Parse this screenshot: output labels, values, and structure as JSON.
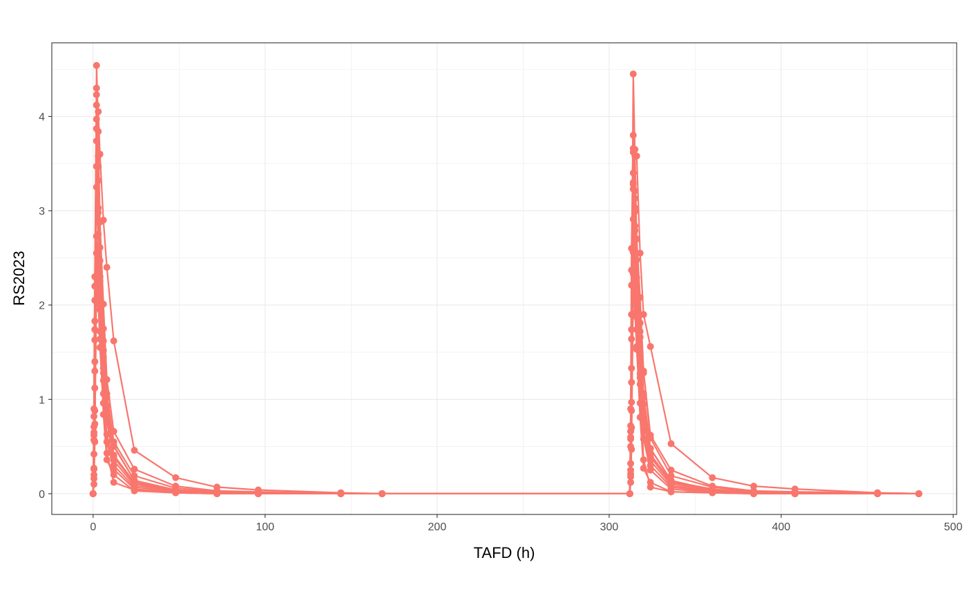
{
  "chart_data": {
    "type": "line",
    "markers": true,
    "title": "",
    "xlabel": "TAFD (h)",
    "ylabel": "RS2023",
    "xlim": [
      -24,
      502
    ],
    "ylim": [
      -0.22,
      4.78
    ],
    "xticks": [
      0,
      100,
      200,
      300,
      400,
      500
    ],
    "xtick_labels": [
      "0",
      "100",
      "200",
      "300",
      "400",
      "500"
    ],
    "yticks": [
      0,
      1,
      2,
      3,
      4
    ],
    "ytick_labels": [
      "0",
      "1",
      "2",
      "3",
      "4"
    ],
    "grid": true,
    "legend": "none",
    "color": "#F8766D",
    "panel_border": "#333333",
    "grid_color": "#ebebeb",
    "series": [
      {
        "x": [
          0,
          0.5,
          1,
          2,
          3,
          4,
          6,
          8,
          12,
          24,
          48,
          72,
          96,
          144,
          168,
          312,
          312.5,
          313,
          314,
          315,
          316,
          318,
          320,
          324,
          336,
          360,
          384,
          408,
          456,
          480
        ],
        "y": [
          0,
          0.42,
          1.83,
          4.54,
          3.84,
          2.88,
          2.01,
          1.21,
          0.66,
          0.26,
          0.08,
          0.03,
          0.02,
          0,
          0,
          0,
          0.5,
          1.9,
          4.45,
          3.58,
          2.7,
          2.08,
          1.3,
          0.62,
          0.25,
          0.08,
          0.03,
          0.02,
          0.01,
          0
        ]
      },
      {
        "x": [
          0,
          0.5,
          1,
          2,
          3,
          4,
          6,
          8,
          12,
          24,
          48,
          72,
          96,
          144,
          168,
          312,
          312.5,
          313,
          314,
          315,
          316,
          318,
          320,
          324,
          336,
          360,
          384,
          408,
          456,
          480
        ],
        "y": [
          0,
          0.82,
          2.3,
          4.3,
          4.05,
          3.6,
          2.9,
          2.4,
          1.62,
          0.46,
          0.17,
          0.07,
          0.04,
          0.01,
          0,
          0,
          0.9,
          2.6,
          3.8,
          3.65,
          3.58,
          2.55,
          1.9,
          1.56,
          0.53,
          0.17,
          0.08,
          0.05,
          0.01,
          0
        ]
      },
      {
        "x": [
          0,
          0.5,
          1,
          2,
          3,
          4,
          6,
          8,
          12,
          24,
          48,
          72,
          96,
          144,
          168,
          312,
          312.5,
          313,
          314,
          315,
          316,
          318,
          320,
          324,
          336,
          360,
          384,
          408,
          456,
          480
        ],
        "y": [
          0,
          0.9,
          2.05,
          3.97,
          3.47,
          2.61,
          1.75,
          1.06,
          0.55,
          0.19,
          0.06,
          0.02,
          0.01,
          0,
          0,
          0,
          0.66,
          2.21,
          3.3,
          3.03,
          2.7,
          1.81,
          1.28,
          0.59,
          0.19,
          0.07,
          0.02,
          0.01,
          0,
          0
        ]
      },
      {
        "x": [
          0,
          0.5,
          1,
          2,
          3,
          4,
          6,
          8,
          12,
          24,
          48,
          72,
          96,
          144,
          168,
          312,
          312.5,
          313,
          314,
          315,
          316,
          318,
          320,
          324,
          336,
          360,
          384,
          408,
          456,
          480
        ],
        "y": [
          0,
          0.65,
          1.74,
          3.87,
          3.03,
          2.26,
          1.52,
          0.93,
          0.5,
          0.14,
          0.04,
          0.01,
          0,
          0,
          0,
          0,
          0.72,
          1.64,
          3.4,
          2.99,
          2.29,
          1.66,
          1.02,
          0.48,
          0.13,
          0.05,
          0.01,
          0,
          0,
          0
        ]
      },
      {
        "x": [
          0,
          0.5,
          1,
          2,
          3,
          4,
          6,
          8,
          12,
          24,
          48,
          72,
          96,
          144,
          168,
          312,
          312.5,
          313,
          314,
          315,
          316,
          318,
          320,
          324,
          336,
          360,
          384,
          408,
          456,
          480
        ],
        "y": [
          0,
          0.57,
          1.4,
          3.74,
          2.88,
          2.47,
          1.33,
          0.85,
          0.39,
          0.11,
          0.03,
          0.01,
          0,
          0,
          0,
          0,
          0.58,
          1.33,
          3.23,
          2.84,
          2.16,
          1.5,
          0.83,
          0.39,
          0.11,
          0.03,
          0.01,
          0,
          0,
          0
        ]
      },
      {
        "x": [
          0,
          0.5,
          1,
          2,
          3,
          4,
          6,
          8,
          12,
          24,
          48,
          72,
          96,
          144,
          168,
          312,
          312.5,
          313,
          314,
          315,
          316,
          318,
          320,
          324,
          336,
          360,
          384,
          408,
          456,
          480
        ],
        "y": [
          0,
          0.27,
          1.12,
          3.25,
          2.75,
          1.95,
          1.28,
          0.77,
          0.35,
          0.09,
          0.03,
          0.01,
          0,
          0,
          0,
          0,
          0.32,
          0.97,
          2.91,
          2.41,
          1.87,
          1.27,
          0.79,
          0.35,
          0.09,
          0.02,
          0.01,
          0,
          0,
          0
        ]
      },
      {
        "x": [
          0,
          0.5,
          1,
          2,
          3,
          4,
          6,
          8,
          12,
          24,
          48,
          72,
          96,
          144,
          168,
          312,
          312.5,
          313,
          314,
          315,
          316,
          318,
          320,
          324,
          336,
          360,
          384,
          408,
          456,
          480
        ],
        "y": [
          0,
          0.2,
          0.88,
          2.73,
          2.39,
          1.72,
          1.06,
          0.63,
          0.3,
          0.07,
          0.02,
          0,
          0,
          0,
          0,
          0,
          0.25,
          0.88,
          2.56,
          2.16,
          1.74,
          1.16,
          0.67,
          0.3,
          0.07,
          0.02,
          0,
          0,
          0,
          0
        ]
      },
      {
        "x": [
          0,
          0.5,
          1,
          2,
          3,
          4,
          6,
          8,
          12,
          24,
          48,
          72,
          96,
          144,
          168,
          312,
          312.5,
          313,
          314,
          315,
          316,
          318,
          320,
          324,
          336,
          360,
          384,
          408,
          456,
          480
        ],
        "y": [
          0,
          0.16,
          0.74,
          2.55,
          2.12,
          1.55,
          0.96,
          0.55,
          0.26,
          0.05,
          0.01,
          0,
          0,
          0,
          0,
          0,
          0.18,
          0.7,
          2.33,
          2.02,
          1.53,
          0.96,
          0.58,
          0.25,
          0.05,
          0.01,
          0,
          0,
          0,
          0
        ]
      },
      {
        "x": [
          0,
          0.5,
          1,
          2,
          3,
          4,
          6,
          8,
          12,
          24,
          48,
          72,
          96,
          144,
          168,
          312,
          312.5,
          313,
          314,
          315,
          316,
          318,
          320,
          324,
          336,
          360,
          384,
          408,
          456,
          480
        ],
        "y": [
          0,
          0.26,
          1.63,
          4.23,
          3.32,
          2.3,
          1.45,
          0.87,
          0.41,
          0.12,
          0.04,
          0.01,
          0,
          0,
          0,
          0,
          0.21,
          1.74,
          3.66,
          3.13,
          2.17,
          1.47,
          0.95,
          0.42,
          0.12,
          0.04,
          0.01,
          0,
          0,
          0
        ]
      },
      {
        "x": [
          0,
          0.5,
          1,
          2,
          3,
          4,
          6,
          8,
          12,
          24,
          48,
          72,
          96,
          144,
          168,
          312,
          312.5,
          313,
          314,
          315,
          316,
          318,
          320,
          324,
          336,
          360,
          384,
          408,
          456,
          480
        ],
        "y": [
          0,
          0.71,
          2.2,
          4.12,
          3.58,
          2.18,
          1.62,
          1.02,
          0.51,
          0.14,
          0.04,
          0.01,
          0,
          0,
          0,
          0,
          0.6,
          2.37,
          3.62,
          3.21,
          2.48,
          1.72,
          1.06,
          0.48,
          0.14,
          0.04,
          0.01,
          0,
          0,
          0
        ]
      },
      {
        "x": [
          0,
          0.5,
          1,
          2,
          3,
          4,
          6,
          8,
          12,
          24,
          48,
          72,
          96,
          144,
          168,
          312,
          312.5,
          313,
          314,
          315,
          316,
          318,
          320,
          324,
          336,
          360,
          384,
          408,
          456,
          480
        ],
        "y": [
          0,
          0.62,
          1.3,
          3.47,
          2.98,
          2.02,
          1.2,
          0.43,
          0.12,
          0.04,
          0.01,
          0,
          0,
          0,
          0,
          0,
          0.66,
          1.18,
          3.28,
          2.79,
          2.06,
          1.23,
          0.36,
          0.07,
          0.02,
          0.01,
          0,
          0,
          0,
          0
        ]
      },
      {
        "x": [
          0,
          0.5,
          1,
          2,
          3,
          4,
          6,
          8,
          12,
          24,
          48,
          72,
          96,
          144,
          168,
          312,
          312.5,
          313,
          314,
          315,
          316,
          318,
          320,
          324,
          336,
          360,
          384,
          408,
          456,
          480
        ],
        "y": [
          0,
          0.1,
          0.55,
          2.3,
          2.01,
          1.64,
          0.84,
          0.36,
          0.2,
          0.03,
          0.01,
          0,
          0,
          0,
          0,
          0,
          0.12,
          0.47,
          2.22,
          1.91,
          1.56,
          0.81,
          0.27,
          0.12,
          0.02,
          0.01,
          0,
          0,
          0,
          0
        ]
      }
    ]
  }
}
